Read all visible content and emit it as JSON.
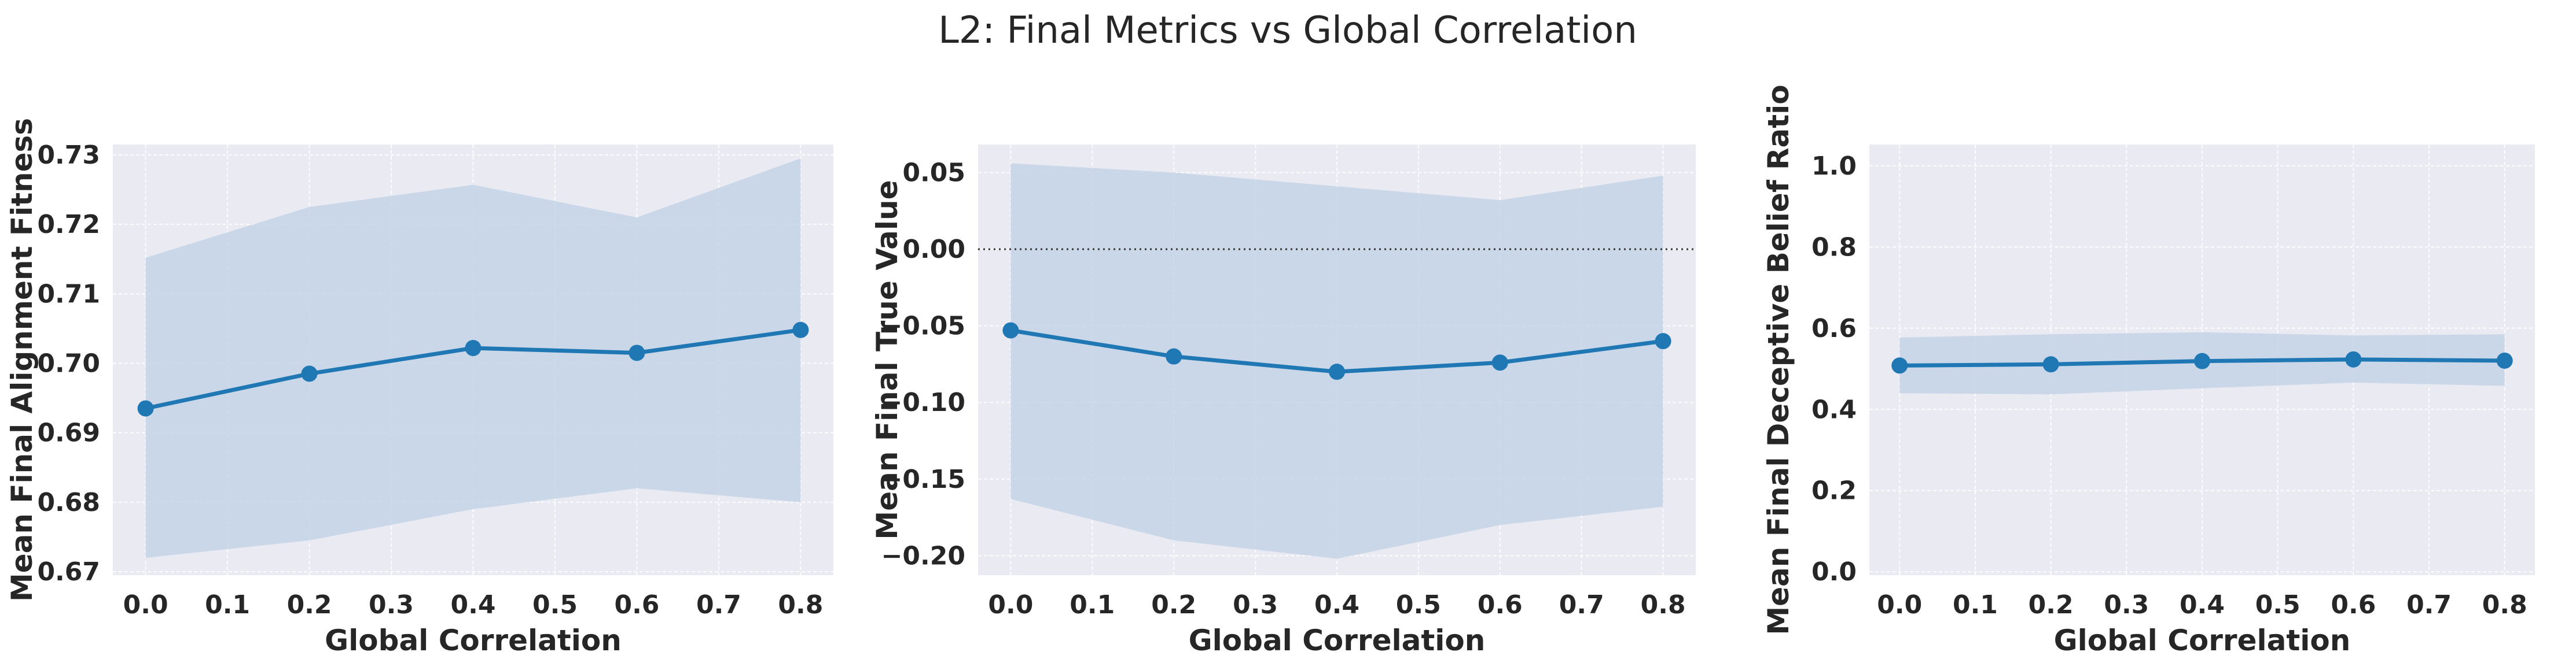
{
  "figure": {
    "title": "L2: Final Metrics vs Global Correlation"
  },
  "colors": {
    "background": "#ffffff",
    "axes_face": "#eaeaf2",
    "grid": "#ffffff",
    "line": "#1f77b4",
    "band": "#c3d4e6",
    "text": "#262626",
    "reference_line": "#333333"
  },
  "chart_data": [
    {
      "type": "line",
      "xlabel": "Global Correlation",
      "ylabel": "Mean Final Alignment Fitness",
      "x": [
        0.0,
        0.2,
        0.4,
        0.6,
        0.8
      ],
      "y": [
        0.6935,
        0.6985,
        0.7022,
        0.7015,
        0.7048
      ],
      "band_lower": [
        0.672,
        0.6745,
        0.679,
        0.682,
        0.68
      ],
      "band_upper": [
        0.7152,
        0.7225,
        0.7257,
        0.721,
        0.7295
      ],
      "xlim": [
        -0.04,
        0.84
      ],
      "ylim": [
        0.6695,
        0.7315
      ],
      "xticks": [
        0.0,
        0.1,
        0.2,
        0.3,
        0.4,
        0.5,
        0.6,
        0.7,
        0.8
      ],
      "xtick_labels": [
        "0.0",
        "0.1",
        "0.2",
        "0.3",
        "0.4",
        "0.5",
        "0.6",
        "0.7",
        "0.8"
      ],
      "yticks": [
        0.67,
        0.68,
        0.69,
        0.7,
        0.71,
        0.72,
        0.73
      ],
      "ytick_labels": [
        "0.67",
        "0.68",
        "0.69",
        "0.70",
        "0.71",
        "0.72",
        "0.73"
      ],
      "reference_line": null,
      "grid": true
    },
    {
      "type": "line",
      "xlabel": "Global Correlation",
      "ylabel": "Mean Final True Value",
      "x": [
        0.0,
        0.2,
        0.4,
        0.6,
        0.8
      ],
      "y": [
        -0.053,
        -0.07,
        -0.08,
        -0.074,
        -0.06
      ],
      "band_lower": [
        -0.163,
        -0.19,
        -0.202,
        -0.18,
        -0.168
      ],
      "band_upper": [
        0.056,
        0.05,
        0.041,
        0.032,
        0.048
      ],
      "xlim": [
        -0.04,
        0.84
      ],
      "ylim": [
        -0.2127,
        0.0683
      ],
      "xticks": [
        0.0,
        0.1,
        0.2,
        0.3,
        0.4,
        0.5,
        0.6,
        0.7,
        0.8
      ],
      "xtick_labels": [
        "0.0",
        "0.1",
        "0.2",
        "0.3",
        "0.4",
        "0.5",
        "0.6",
        "0.7",
        "0.8"
      ],
      "yticks": [
        -0.2,
        -0.15,
        -0.1,
        -0.05,
        0.0,
        0.05
      ],
      "ytick_labels": [
        "−0.20",
        "−0.15",
        "−0.10",
        "−0.05",
        "0.00",
        "0.05"
      ],
      "reference_line": 0.0,
      "grid": true
    },
    {
      "type": "line",
      "xlabel": "Global Correlation",
      "ylabel": "Mean Final Deceptive Belief Ratio",
      "x": [
        0.0,
        0.2,
        0.4,
        0.6,
        0.8
      ],
      "y": [
        0.508,
        0.511,
        0.519,
        0.523,
        0.52
      ],
      "band_lower": [
        0.44,
        0.437,
        0.452,
        0.466,
        0.458
      ],
      "band_upper": [
        0.577,
        0.585,
        0.59,
        0.582,
        0.585
      ],
      "xlim": [
        -0.04,
        0.84
      ],
      "ylim": [
        -0.0083,
        1.0525
      ],
      "xticks": [
        0.0,
        0.1,
        0.2,
        0.3,
        0.4,
        0.5,
        0.6,
        0.7,
        0.8
      ],
      "xtick_labels": [
        "0.0",
        "0.1",
        "0.2",
        "0.3",
        "0.4",
        "0.5",
        "0.6",
        "0.7",
        "0.8"
      ],
      "yticks": [
        0.0,
        0.2,
        0.4,
        0.6,
        0.8,
        1.0
      ],
      "ytick_labels": [
        "0.0",
        "0.2",
        "0.4",
        "0.6",
        "0.8",
        "1.0"
      ],
      "reference_line": null,
      "grid": true
    }
  ]
}
